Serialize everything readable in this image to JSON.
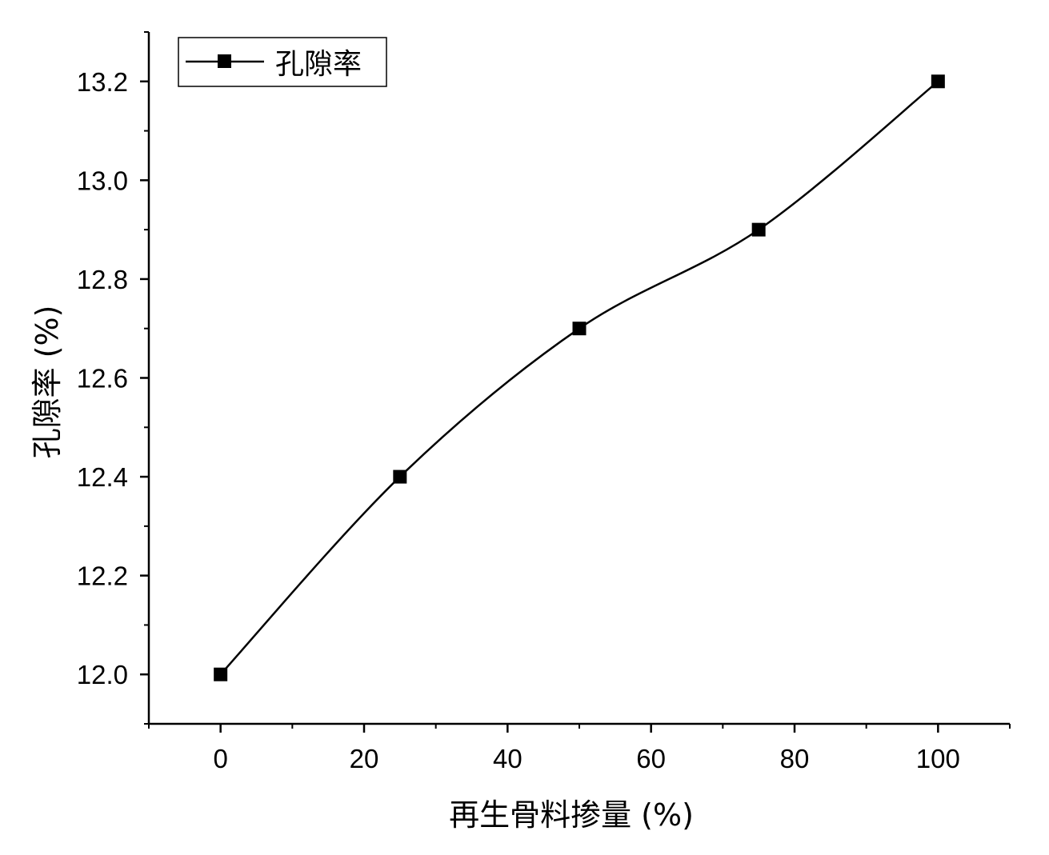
{
  "chart_data": {
    "type": "line",
    "title": "",
    "xlabel": "再生骨料掺量 (%)",
    "ylabel": "孔隙率 (%)",
    "xlim": [
      -10,
      110
    ],
    "ylim": [
      11.9,
      13.3
    ],
    "x_major_ticks": [
      0,
      20,
      40,
      60,
      80,
      100
    ],
    "x_tick_labels": [
      "0",
      "20",
      "40",
      "60",
      "80",
      "100"
    ],
    "y_major_ticks": [
      12.0,
      12.2,
      12.4,
      12.6,
      12.8,
      13.0,
      13.2
    ],
    "y_tick_labels": [
      "12.0",
      "12.2",
      "12.4",
      "12.6",
      "12.8",
      "13.0",
      "13.2"
    ],
    "grid": false,
    "legend_position": "top-left",
    "line_style": "smooth",
    "marker": "square",
    "series": [
      {
        "name": "孔隙率",
        "color": "#000000",
        "x": [
          0,
          25,
          50,
          75,
          100
        ],
        "y": [
          12.0,
          12.4,
          12.7,
          12.9,
          13.2
        ]
      }
    ]
  }
}
